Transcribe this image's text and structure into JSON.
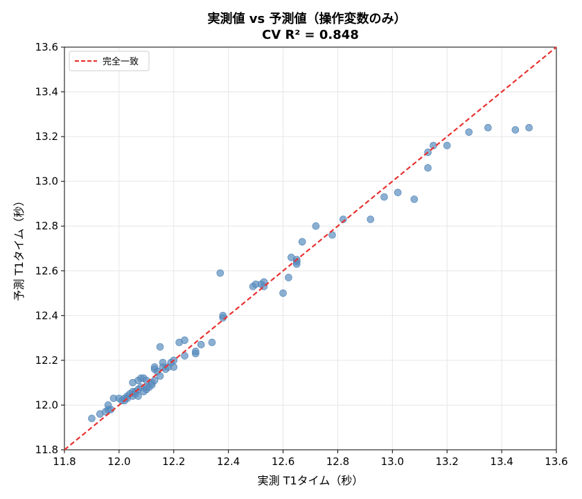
{
  "chart_data": {
    "type": "scatter",
    "title": "実測値 vs 予測値（操作変数のみ）",
    "subtitle": "CV R² = 0.848",
    "xlabel": "実測 T1タイム（秒）",
    "ylabel": "予測 T1タイム（秒）",
    "xlim": [
      11.8,
      13.6
    ],
    "ylim": [
      11.8,
      13.6
    ],
    "xticks": [
      "11.8",
      "12.0",
      "12.2",
      "12.4",
      "12.6",
      "12.8",
      "13.0",
      "13.2",
      "13.4",
      "13.6"
    ],
    "yticks": [
      "11.8",
      "12.0",
      "12.2",
      "12.4",
      "12.6",
      "12.8",
      "13.0",
      "13.2",
      "13.4",
      "13.6"
    ],
    "grid": true,
    "legend_position": "top-left",
    "point_color": "#5b8ebf",
    "line_color": "#e8312f",
    "reference_line": {
      "name": "完全一致",
      "from": [
        11.8,
        11.8
      ],
      "to": [
        13.6,
        13.6
      ],
      "style": "dashed"
    },
    "series": [
      {
        "points": [
          [
            11.9,
            11.94
          ],
          [
            11.93,
            11.96
          ],
          [
            11.95,
            11.97
          ],
          [
            11.96,
            11.98
          ],
          [
            11.97,
            11.98
          ],
          [
            11.96,
            12.0
          ],
          [
            11.98,
            12.03
          ],
          [
            12.0,
            12.03
          ],
          [
            12.01,
            12.02
          ],
          [
            12.02,
            12.02
          ],
          [
            12.02,
            12.03
          ],
          [
            12.03,
            12.04
          ],
          [
            12.03,
            12.03
          ],
          [
            12.04,
            12.05
          ],
          [
            12.05,
            12.04
          ],
          [
            12.05,
            12.06
          ],
          [
            12.06,
            12.06
          ],
          [
            12.06,
            12.05
          ],
          [
            12.07,
            12.04
          ],
          [
            12.07,
            12.07
          ],
          [
            12.08,
            12.08
          ],
          [
            12.09,
            12.06
          ],
          [
            12.1,
            12.07
          ],
          [
            12.1,
            12.08
          ],
          [
            12.11,
            12.08
          ],
          [
            12.12,
            12.1
          ],
          [
            12.12,
            12.09
          ],
          [
            12.13,
            12.11
          ],
          [
            12.05,
            12.1
          ],
          [
            12.07,
            12.11
          ],
          [
            12.08,
            12.12
          ],
          [
            12.09,
            12.12
          ],
          [
            12.1,
            12.11
          ],
          [
            12.13,
            12.16
          ],
          [
            12.14,
            12.15
          ],
          [
            12.15,
            12.13
          ],
          [
            12.16,
            12.17
          ],
          [
            12.17,
            12.16
          ],
          [
            12.18,
            12.17
          ],
          [
            12.19,
            12.19
          ],
          [
            12.2,
            12.17
          ],
          [
            12.2,
            12.2
          ],
          [
            12.16,
            12.19
          ],
          [
            12.13,
            12.17
          ],
          [
            12.15,
            12.26
          ],
          [
            12.22,
            12.28
          ],
          [
            12.24,
            12.29
          ],
          [
            12.24,
            12.22
          ],
          [
            12.28,
            12.23
          ],
          [
            12.28,
            12.24
          ],
          [
            12.3,
            12.27
          ],
          [
            12.34,
            12.28
          ],
          [
            12.37,
            12.59
          ],
          [
            12.38,
            12.39
          ],
          [
            12.38,
            12.4
          ],
          [
            12.49,
            12.53
          ],
          [
            12.5,
            12.54
          ],
          [
            12.52,
            12.54
          ],
          [
            12.53,
            12.53
          ],
          [
            12.53,
            12.55
          ],
          [
            12.6,
            12.5
          ],
          [
            12.62,
            12.57
          ],
          [
            12.63,
            12.66
          ],
          [
            12.65,
            12.64
          ],
          [
            12.65,
            12.63
          ],
          [
            12.65,
            12.65
          ],
          [
            12.67,
            12.73
          ],
          [
            12.72,
            12.8
          ],
          [
            12.78,
            12.76
          ],
          [
            12.82,
            12.83
          ],
          [
            12.92,
            12.83
          ],
          [
            12.97,
            12.93
          ],
          [
            13.02,
            12.95
          ],
          [
            13.08,
            12.92
          ],
          [
            13.13,
            13.06
          ],
          [
            13.13,
            13.13
          ],
          [
            13.15,
            13.16
          ],
          [
            13.2,
            13.16
          ],
          [
            13.28,
            13.22
          ],
          [
            13.35,
            13.24
          ],
          [
            13.45,
            13.23
          ],
          [
            13.5,
            13.24
          ]
        ]
      }
    ]
  }
}
